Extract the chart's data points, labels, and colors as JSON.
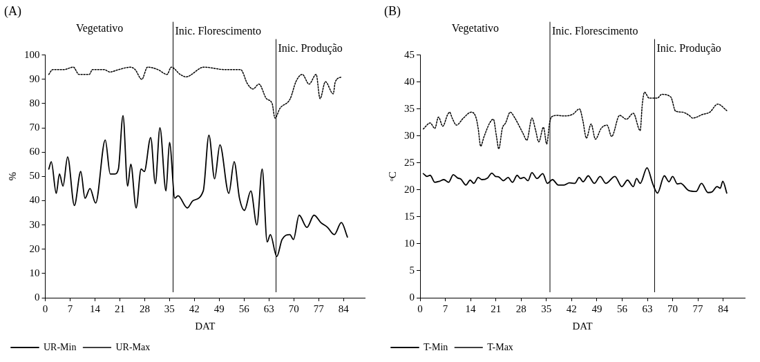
{
  "chart_data": [
    {
      "type": "line",
      "title": "(A)",
      "xlabel": "DAT",
      "ylabel": "%",
      "annotations": [
        "Vegetativo"
      ],
      "xlim": [
        0,
        90
      ],
      "xticks": [
        0,
        7,
        14,
        21,
        28,
        35,
        42,
        49,
        56,
        63,
        70,
        77,
        84
      ],
      "ylim": [
        0,
        100
      ],
      "yticks": [
        0,
        10,
        20,
        30,
        40,
        50,
        60,
        70,
        80,
        90,
        100
      ],
      "grid": false,
      "legend": "bottom left",
      "marker": "none",
      "ref_lines": [
        {
          "axis": "x",
          "value": 36,
          "label": "Inic. Florescimento"
        },
        {
          "axis": "x",
          "value": 65,
          "label": "Inic. Produção"
        }
      ],
      "series": [
        {
          "name": "UR-Min",
          "color": "#000000",
          "line_style": "solid",
          "x": [
            1,
            1.7,
            3.1,
            4,
            5,
            6.3,
            8.2,
            10,
            11.2,
            12.6,
            14.2,
            16.9,
            18.3,
            19.6,
            20.6,
            21.9,
            23.2,
            24.1,
            25.6,
            27,
            27.9,
            29.7,
            31,
            32.3,
            34,
            35,
            36.5,
            37.4,
            40,
            41.6,
            44.5,
            46.1,
            47.7,
            49.2,
            51.7,
            53.2,
            54.7,
            56.1,
            57.9,
            59.6,
            61.1,
            62.5,
            63.4,
            65.2,
            66.7,
            68.9,
            69.9,
            71.5,
            73.7,
            75.7,
            77.6,
            79.5,
            81.4,
            83.4,
            85.1
          ],
          "values": [
            53,
            56,
            43,
            51,
            46,
            58,
            38,
            52,
            41,
            45,
            39,
            65,
            51,
            51,
            53,
            75,
            46,
            55,
            37,
            53,
            52,
            66,
            47,
            70,
            44,
            64,
            41,
            42,
            37,
            40,
            44,
            67,
            49,
            63,
            43,
            56,
            41,
            36,
            44,
            30,
            53,
            23,
            26,
            17,
            24,
            26,
            24,
            34,
            29,
            34,
            31,
            29,
            26,
            31,
            25
          ]
        },
        {
          "name": "UR-Max",
          "color": "#000000",
          "line_style": "dotted",
          "x": [
            1,
            2.1,
            5.3,
            7.9,
            9.5,
            12.4,
            13.3,
            16.6,
            18.2,
            20.7,
            24,
            25.3,
            27.2,
            28.8,
            31.7,
            34.3,
            35.5,
            38,
            39.6,
            44.7,
            50.5,
            55,
            57,
            58.5,
            60.2,
            62.3,
            63.9,
            64.7,
            66.1,
            69,
            70.6,
            72.4,
            74.3,
            76.3,
            77.4,
            78.9,
            81.1,
            81.7,
            83.6
          ],
          "values": [
            92,
            94,
            94,
            95,
            92,
            92,
            94,
            94,
            93,
            94,
            95,
            94,
            90,
            95,
            94,
            92,
            95,
            92,
            91,
            95,
            94,
            94,
            88,
            86,
            88,
            82,
            80,
            74,
            78,
            82,
            89,
            92,
            88,
            92,
            82,
            89,
            84,
            89,
            91
          ]
        }
      ]
    },
    {
      "type": "line",
      "title": "(B)",
      "xlabel": "DAT",
      "ylabel": "ᵒC",
      "annotations": [
        "Vegetativo"
      ],
      "xlim": [
        0,
        90
      ],
      "xticks": [
        0,
        7,
        14,
        21,
        28,
        35,
        42,
        49,
        56,
        63,
        70,
        77,
        84
      ],
      "ylim": [
        0,
        45
      ],
      "yticks": [
        0,
        5,
        10,
        15,
        20,
        25,
        30,
        35,
        40,
        45
      ],
      "grid": false,
      "legend": "bottom left",
      "marker": "none",
      "ref_lines": [
        {
          "axis": "x",
          "value": 36,
          "label": "Inic. Florescimento"
        },
        {
          "axis": "x",
          "value": 65,
          "label": "Inic. Produção"
        }
      ],
      "series": [
        {
          "name": "T-Min",
          "color": "#000000",
          "line_style": "solid",
          "x": [
            0.9,
            1.9,
            2.8,
            4.1,
            5.4,
            6.6,
            7.9,
            9.2,
            10.4,
            11.3,
            12.7,
            13.9,
            14.9,
            16.1,
            17.1,
            18.7,
            19.9,
            20.9,
            21.8,
            23.1,
            24.4,
            25.6,
            26.9,
            27.8,
            28.8,
            29.9,
            31,
            32.4,
            34,
            35.3,
            36.7,
            38.3,
            39.9,
            41.4,
            42.9,
            44.1,
            45.2,
            46.6,
            48.3,
            49.9,
            51.5,
            54,
            55.9,
            57.5,
            59.1,
            60,
            61,
            62.9,
            64.5,
            65.8,
            67.7,
            69,
            70,
            71.3,
            72.2,
            74.4,
            76.5,
            78,
            79.8,
            80.9,
            82.3,
            83.2,
            83.9,
            85
          ],
          "values": [
            23,
            22.5,
            22.7,
            21.4,
            21.6,
            21.9,
            21.4,
            22.8,
            22.2,
            22,
            20.9,
            21.8,
            21.2,
            22.3,
            21.9,
            22.2,
            23.1,
            22.5,
            22.4,
            21.7,
            22.3,
            21.4,
            22.7,
            22.1,
            22.3,
            21.7,
            23.2,
            22.1,
            23,
            21.2,
            21.9,
            20.9,
            20.9,
            21.3,
            21.2,
            22.3,
            21.5,
            22.6,
            21.2,
            22.5,
            21.2,
            22.5,
            20.6,
            21.8,
            20.6,
            22.1,
            21.2,
            24.1,
            21.1,
            19.4,
            22.6,
            21.5,
            22.5,
            21.1,
            21.2,
            19.9,
            19.7,
            21.2,
            19.5,
            19.6,
            20.6,
            20.3,
            21.6,
            19.4
          ]
        },
        {
          "name": "T-Max",
          "color": "#000000",
          "line_style": "dotted",
          "x": [
            0.9,
            2.8,
            4.1,
            5.1,
            6.3,
            7.6,
            8.2,
            8.9,
            10.1,
            12,
            14.2,
            15.5,
            16.1,
            16.8,
            17.7,
            19.3,
            20.3,
            21.2,
            21.8,
            22.8,
            23.7,
            25,
            26.3,
            27.2,
            28.5,
            29.6,
            31,
            32,
            32.9,
            34.2,
            35.1,
            35.9,
            36.4,
            38,
            39.8,
            42.3,
            44.2,
            45.1,
            46.1,
            47.4,
            48.6,
            50.2,
            51.8,
            53.1,
            55.3,
            57.2,
            59.1,
            61,
            61.6,
            62.2,
            63.5,
            65.7,
            67,
            69.5,
            70.8,
            72.7,
            74.6,
            75.5,
            78.4,
            80.3,
            82.5,
            85
          ],
          "values": [
            31.3,
            32.4,
            31.4,
            33.5,
            31.8,
            33.9,
            34.4,
            33.3,
            32,
            33.3,
            34.4,
            33.4,
            31.4,
            28.1,
            29.8,
            32.4,
            33.1,
            29.8,
            27.6,
            31.4,
            32.4,
            34.4,
            33.3,
            32.2,
            30.5,
            29.2,
            33.3,
            31.1,
            28.9,
            31.6,
            28.5,
            32.4,
            33.5,
            33.8,
            33.7,
            34,
            35,
            32.9,
            29.6,
            32.2,
            29.4,
            31.4,
            32,
            29.9,
            33.8,
            33.1,
            34.2,
            31,
            35.9,
            38.1,
            37,
            37,
            37.7,
            37.2,
            34.6,
            34.4,
            33.8,
            33.3,
            34,
            34.4,
            35.9,
            34.7
          ]
        }
      ]
    }
  ]
}
